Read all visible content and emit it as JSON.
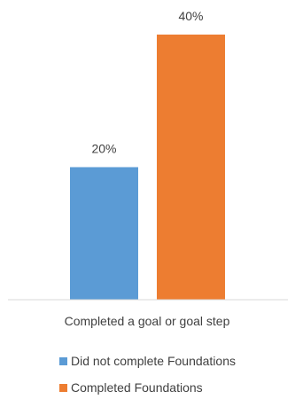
{
  "chart_data": {
    "type": "bar",
    "categories": [
      "Completed a goal or goal step"
    ],
    "series": [
      {
        "name": "Did not complete Foundations",
        "values": [
          20
        ],
        "label": "20%",
        "color": "#5b9bd5"
      },
      {
        "name": "Completed Foundations",
        "values": [
          40
        ],
        "label": "40%",
        "color": "#ed7d31"
      }
    ],
    "value_unit": "%",
    "ylim": [
      0,
      40
    ],
    "grid": false,
    "legend_position": "bottom"
  }
}
